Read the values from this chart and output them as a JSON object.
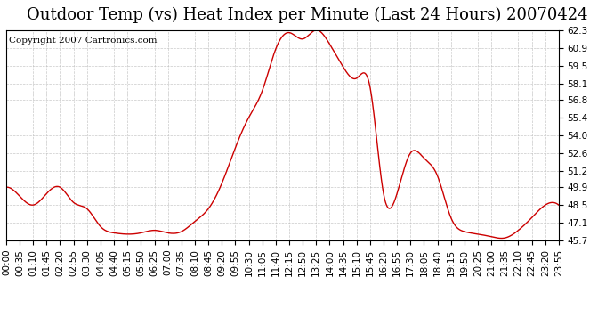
{
  "title": "Outdoor Temp (vs) Heat Index per Minute (Last 24 Hours) 20070424",
  "copyright_text": "Copyright 2007 Cartronics.com",
  "line_color": "#cc0000",
  "background_color": "#ffffff",
  "grid_color": "#bbbbbb",
  "y_ticks": [
    45.7,
    47.1,
    48.5,
    49.9,
    51.2,
    52.6,
    54.0,
    55.4,
    56.8,
    58.1,
    59.5,
    60.9,
    62.3
  ],
  "ylim": [
    45.7,
    62.3
  ],
  "x_labels": [
    "00:00",
    "00:35",
    "01:10",
    "01:45",
    "02:20",
    "02:55",
    "03:30",
    "04:05",
    "04:40",
    "05:15",
    "05:50",
    "06:25",
    "07:00",
    "07:35",
    "08:10",
    "08:45",
    "09:20",
    "09:55",
    "10:30",
    "11:05",
    "11:40",
    "12:15",
    "12:50",
    "13:25",
    "14:00",
    "14:35",
    "15:10",
    "15:45",
    "16:20",
    "16:55",
    "17:30",
    "18:05",
    "18:40",
    "19:15",
    "19:50",
    "20:25",
    "21:00",
    "21:35",
    "22:10",
    "22:45",
    "23:20",
    "23:55"
  ],
  "x_values": [
    0,
    35,
    70,
    105,
    140,
    175,
    210,
    245,
    280,
    315,
    350,
    385,
    420,
    455,
    490,
    525,
    560,
    595,
    630,
    665,
    700,
    735,
    770,
    805,
    840,
    875,
    910,
    945,
    980,
    1015,
    1050,
    1085,
    1120,
    1155,
    1190,
    1225,
    1260,
    1295,
    1330,
    1365,
    1400,
    1435
  ],
  "y_values": [
    49.9,
    49.2,
    48.5,
    49.4,
    49.9,
    48.7,
    48.2,
    46.8,
    46.3,
    46.2,
    46.3,
    46.5,
    46.3,
    46.4,
    47.2,
    48.2,
    50.2,
    53.0,
    55.4,
    57.5,
    60.8,
    62.1,
    61.6,
    62.3,
    61.2,
    59.4,
    58.5,
    57.8,
    49.4,
    49.4,
    52.6,
    52.2,
    50.8,
    47.5,
    46.4,
    46.2,
    46.0,
    45.9,
    46.5,
    47.5,
    48.5,
    48.5
  ],
  "title_fontsize": 13,
  "copyright_fontsize": 7.5,
  "tick_fontsize": 7.5
}
